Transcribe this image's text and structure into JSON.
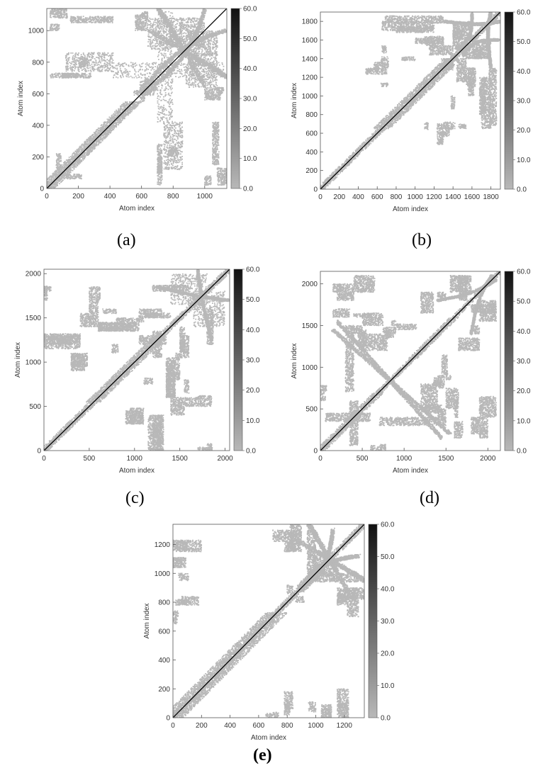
{
  "colors": {
    "contact": "#b8b8b8",
    "diagonal": "#000000",
    "axis": "#555555"
  },
  "colorbar": {
    "ticks": [
      "0.0",
      "10.0",
      "20.0",
      "30.0",
      "40.0",
      "50.0",
      "60.0"
    ],
    "range": [
      0,
      60
    ]
  },
  "panels": [
    {
      "label": "(a)",
      "xlabel": "Atom index",
      "ylabel": "Atom index"
    },
    {
      "label": "(b)",
      "xlabel": "Atom index",
      "ylabel": "Atom index"
    },
    {
      "label": "(c)",
      "xlabel": "Atom index",
      "ylabel": "Atom index"
    },
    {
      "label": "(d)",
      "xlabel": "Atom index",
      "ylabel": "Atom index"
    },
    {
      "label": "(e)",
      "xlabel": "Atom index",
      "ylabel": "Atom index"
    }
  ],
  "chart_data": [
    {
      "type": "heatmap",
      "n": 1140,
      "xlim": [
        0,
        1140
      ],
      "ylim": [
        0,
        1140
      ],
      "xticks": [
        "0",
        "200",
        "400",
        "600",
        "800",
        "1000"
      ],
      "yticks": [
        "0",
        "200",
        "400",
        "600",
        "800",
        "1000"
      ],
      "band": [
        [
          0,
          550,
          55
        ]
      ],
      "blocks": [
        [
          20,
          130,
          1080,
          1140
        ],
        [
          100,
          200,
          700,
          730
        ],
        [
          200,
          260,
          770,
          830
        ],
        [
          120,
          220,
          60,
          90
        ],
        [
          590,
          620,
          550,
          640
        ],
        [
          620,
          680,
          590,
          700
        ],
        [
          700,
          800,
          420,
          1120
        ],
        [
          840,
          1000,
          900,
          1080
        ],
        [
          880,
          1080,
          640,
          860
        ],
        [
          900,
          1000,
          780,
          820
        ],
        [
          1000,
          1100,
          560,
          640
        ],
        [
          700,
          730,
          20,
          280
        ],
        [
          740,
          860,
          120,
          420
        ],
        [
          1000,
          1040,
          20,
          80
        ],
        [
          1050,
          1090,
          150,
          420
        ],
        [
          1090,
          1120,
          600,
          640
        ]
      ],
      "arcs": [
        [
          650,
          1000,
          1150,
          700,
          28
        ],
        [
          1000,
          1130,
          680,
          650,
          22
        ]
      ]
    },
    {
      "type": "heatmap",
      "n": 1900,
      "xlim": [
        0,
        1900
      ],
      "ylim": [
        0,
        1900
      ],
      "xticks": [
        "0",
        "200",
        "400",
        "600",
        "800",
        "1000",
        "1200",
        "1400",
        "1600",
        "1800"
      ],
      "yticks": [
        "0",
        "200",
        "400",
        "600",
        "800",
        "1000",
        "1200",
        "1400",
        "1600",
        "1800"
      ],
      "band": [
        [
          0,
          650,
          45
        ],
        [
          650,
          1350,
          90
        ],
        [
          1350,
          1900,
          40
        ]
      ],
      "blocks": [
        [
          680,
          1300,
          1780,
          1860
        ],
        [
          800,
          1200,
          1680,
          1750
        ],
        [
          1000,
          1300,
          1560,
          1620
        ],
        [
          650,
          700,
          1460,
          1540
        ],
        [
          560,
          640,
          1280,
          1360
        ],
        [
          1380,
          1440,
          1380,
          1440
        ],
        [
          1300,
          1400,
          1280,
          1400
        ],
        [
          1440,
          1540,
          1150,
          1400
        ],
        [
          1540,
          1640,
          1100,
          1300
        ],
        [
          1700,
          1800,
          650,
          1200
        ],
        [
          1230,
          1300,
          480,
          700
        ],
        [
          1300,
          1420,
          640,
          720
        ],
        [
          1400,
          1500,
          1500,
          1700
        ],
        [
          1600,
          1800,
          1400,
          1600
        ],
        [
          1380,
          1420,
          860,
          1000
        ],
        [
          1100,
          1140,
          640,
          720
        ]
      ],
      "arcs": [
        [
          1300,
          1800,
          1900,
          1800,
          30
        ],
        [
          1600,
          1880,
          1450,
          1500,
          26
        ]
      ]
    },
    {
      "type": "heatmap",
      "n": 2050,
      "xlim": [
        0,
        2050
      ],
      "ylim": [
        0,
        2050
      ],
      "xticks": [
        "0",
        "500",
        "1000",
        "1500",
        "2000"
      ],
      "yticks": [
        "0",
        "500",
        "1000",
        "1500",
        "2000"
      ],
      "band": [
        [
          0,
          550,
          50
        ],
        [
          550,
          1250,
          80
        ],
        [
          1250,
          2050,
          45
        ]
      ],
      "blocks": [
        [
          0,
          80,
          1800,
          1860
        ],
        [
          0,
          400,
          1200,
          1320
        ],
        [
          300,
          480,
          950,
          1100
        ],
        [
          500,
          560,
          1700,
          1850
        ],
        [
          650,
          800,
          1550,
          1600
        ],
        [
          600,
          1000,
          1350,
          1450
        ],
        [
          800,
          1100,
          1450,
          1500
        ],
        [
          1100,
          1400,
          1500,
          1560
        ],
        [
          1200,
          1600,
          1800,
          1870
        ],
        [
          1400,
          1800,
          1650,
          2000
        ],
        [
          1200,
          1300,
          1050,
          1350
        ],
        [
          1500,
          1600,
          1050,
          1300
        ],
        [
          1350,
          1450,
          600,
          1050
        ],
        [
          1400,
          1550,
          400,
          600
        ],
        [
          1550,
          1700,
          500,
          600
        ],
        [
          1700,
          1850,
          560,
          620
        ],
        [
          900,
          1100,
          300,
          450
        ],
        [
          1150,
          1300,
          0,
          400
        ],
        [
          1700,
          1850,
          0,
          40
        ],
        [
          1100,
          1200,
          750,
          820
        ]
      ],
      "arcs": [
        [
          1250,
          1850,
          2050,
          1700,
          30
        ]
      ]
    },
    {
      "type": "heatmap",
      "n": 2150,
      "xlim": [
        0,
        2150
      ],
      "ylim": [
        0,
        2150
      ],
      "xticks": [
        "0",
        "500",
        "1000",
        "1500",
        "2000"
      ],
      "yticks": [
        "0",
        "500",
        "1000",
        "1500",
        "2000"
      ],
      "band": [
        [
          0,
          700,
          60
        ],
        [
          700,
          1100,
          40
        ],
        [
          1100,
          1600,
          50
        ],
        [
          1600,
          2150,
          35
        ]
      ],
      "blocks": [
        [
          0,
          80,
          700,
          780
        ],
        [
          400,
          650,
          1900,
          2100
        ],
        [
          400,
          600,
          1600,
          1640
        ],
        [
          450,
          550,
          1250,
          1450
        ],
        [
          750,
          900,
          1400,
          1480
        ],
        [
          900,
          1150,
          1450,
          1520
        ],
        [
          500,
          800,
          1200,
          1400
        ],
        [
          850,
          900,
          1500,
          1560
        ],
        [
          1200,
          1350,
          1650,
          1900
        ],
        [
          1400,
          1500,
          1800,
          1900
        ],
        [
          1550,
          1800,
          1900,
          2100
        ],
        [
          1800,
          2100,
          1650,
          1750
        ],
        [
          1500,
          1650,
          500,
          750
        ],
        [
          1400,
          1500,
          300,
          500
        ],
        [
          1600,
          1700,
          150,
          350
        ],
        [
          1800,
          2000,
          200,
          400
        ],
        [
          1900,
          2000,
          150,
          250
        ],
        [
          600,
          700,
          0,
          60
        ],
        [
          350,
          450,
          60,
          600
        ],
        [
          1350,
          1450,
          780,
          880
        ],
        [
          700,
          1400,
          300,
          400
        ]
      ],
      "arcs": [
        [
          1400,
          1800,
          2100,
          2050,
          28
        ]
      ],
      "antidiag": [
        [
          150,
          1450,
          1550,
          200
        ]
      ]
    },
    {
      "type": "heatmap",
      "n": 1340,
      "xlim": [
        0,
        1340
      ],
      "ylim": [
        0,
        1340
      ],
      "xticks": [
        "0",
        "200",
        "400",
        "600",
        "800",
        "1000",
        "1200"
      ],
      "yticks": [
        "0",
        "200",
        "400",
        "600",
        "800",
        "1000",
        "1200"
      ],
      "band": [
        [
          0,
          730,
          75
        ],
        [
          730,
          1340,
          30
        ]
      ],
      "blocks": [
        [
          20,
          100,
          1160,
          1220
        ],
        [
          0,
          60,
          1040,
          1110
        ],
        [
          20,
          100,
          780,
          820
        ],
        [
          0,
          40,
          700,
          740
        ],
        [
          780,
          860,
          1150,
          1230
        ],
        [
          820,
          900,
          1200,
          1340
        ],
        [
          940,
          1000,
          960,
          1300
        ],
        [
          1000,
          1140,
          980,
          1060
        ],
        [
          1150,
          1220,
          800,
          900
        ],
        [
          1220,
          1300,
          700,
          900
        ],
        [
          780,
          840,
          60,
          180
        ],
        [
          950,
          1000,
          40,
          110
        ],
        [
          1040,
          1110,
          0,
          90
        ],
        [
          1150,
          1230,
          0,
          200
        ],
        [
          650,
          700,
          0,
          30
        ],
        [
          860,
          920,
          800,
          840
        ]
      ],
      "arcs": [
        [
          880,
          1220,
          1340,
          950,
          30
        ],
        [
          1120,
          1300,
          900,
          880,
          25
        ]
      ]
    }
  ]
}
